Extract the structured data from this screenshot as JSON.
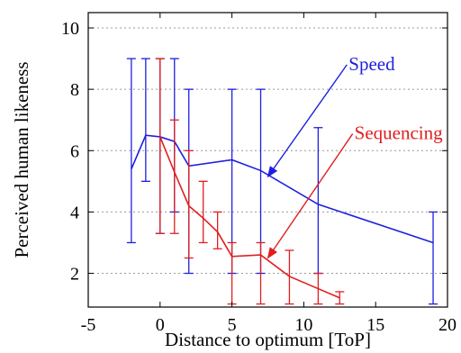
{
  "chart_data": {
    "type": "line",
    "xlabel": "Distance to optimum [ToP]",
    "ylabel": "Perceived human likeness",
    "xlim": [
      -5,
      20
    ],
    "ylim": [
      0.9,
      10.5
    ],
    "xticks": [
      -5,
      0,
      5,
      10,
      15,
      20
    ],
    "yticks": [
      2,
      4,
      6,
      8,
      10
    ],
    "grid": "horizontal dotted",
    "series": [
      {
        "name": "Speed",
        "color": "#1f1fe0",
        "x": [
          -2,
          -1,
          0,
          1,
          2,
          5,
          7,
          11,
          19
        ],
        "y": [
          5.4,
          6.5,
          6.45,
          6.3,
          5.5,
          5.7,
          5.35,
          4.25,
          3.0
        ],
        "err_low": [
          3.0,
          5.0,
          3.3,
          4.0,
          2.0,
          2.0,
          2.0,
          2.0,
          1.0
        ],
        "err_high": [
          9.0,
          9.0,
          9.0,
          9.0,
          8.0,
          8.0,
          8.0,
          6.75,
          4.0
        ]
      },
      {
        "name": "Sequencing",
        "color": "#e01f1f",
        "x": [
          0,
          1,
          2,
          3,
          4,
          5,
          7,
          9,
          11,
          12.5
        ],
        "y": [
          6.45,
          5.3,
          4.2,
          3.8,
          3.35,
          2.55,
          2.6,
          1.9,
          1.5,
          1.2
        ],
        "err_low": [
          3.3,
          3.3,
          2.5,
          3.0,
          2.8,
          1.0,
          1.0,
          1.0,
          1.0,
          1.0
        ],
        "err_high": [
          9.0,
          7.0,
          6.0,
          5.0,
          4.0,
          3.0,
          3.0,
          2.75,
          2.0,
          1.4
        ]
      }
    ],
    "annotations": [
      {
        "text": "Speed",
        "series": 0,
        "target_x": 7.5,
        "target_y": 5.15,
        "anchor_x": 13,
        "anchor_y": 8.8
      },
      {
        "text": "Sequencing",
        "series": 1,
        "target_x": 7.5,
        "target_y": 2.5,
        "anchor_x": 13.4,
        "anchor_y": 6.55
      }
    ]
  }
}
